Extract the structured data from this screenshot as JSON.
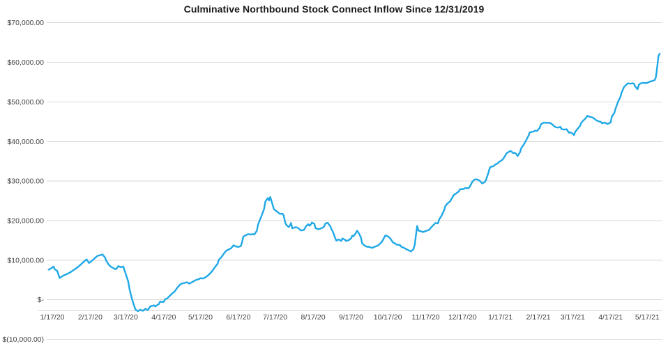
{
  "title": "Culminative Northbound Stock Connect Inflow Since 12/31/2019",
  "colors": {
    "line": "#1fa8e6",
    "gridline": "#dadada",
    "axis_line": "#d4d4d4",
    "axis_text": "#3f3f3f",
    "title_text": "#1a1a1a",
    "background": "#ffffff"
  },
  "y_axis": {
    "ticks": [
      {
        "label": "$70,000.00",
        "value": 70000
      },
      {
        "label": "$60,000.00",
        "value": 60000
      },
      {
        "label": "$50,000.00",
        "value": 50000
      },
      {
        "label": "$40,000.00",
        "value": 40000
      },
      {
        "label": "$30,000.00",
        "value": 30000
      },
      {
        "label": "$20,000.00",
        "value": 20000
      },
      {
        "label": "$10,000.00",
        "value": 10000
      },
      {
        "label": "$-",
        "value": 0
      },
      {
        "label": "$(10,000.00)",
        "value": -10000
      }
    ]
  },
  "x_axis": {
    "tick_labels": [
      "1/17/20",
      "2/17/20",
      "3/17/20",
      "4/17/20",
      "5/17/20",
      "6/17/20",
      "7/17/20",
      "8/17/20",
      "9/17/20",
      "10/17/20",
      "11/17/20",
      "12/17/20",
      "1/17/21",
      "2/17/21",
      "3/17/21",
      "4/17/21",
      "5/17/21"
    ]
  },
  "chart_data": {
    "type": "line",
    "title": "Culminative Northbound Stock Connect Inflow Since 12/31/2019",
    "xlabel": "",
    "ylabel": "",
    "ylim": [
      -10000,
      70000
    ],
    "grid": true,
    "legend": false,
    "series_name": "Cumulative Northbound Stock Connect Inflow",
    "series_color": "#1fa8e6",
    "points": [
      [
        "1/14/20",
        7600
      ],
      [
        "1/16/20",
        7900
      ],
      [
        "1/18/20",
        8400
      ],
      [
        "1/19/20",
        7700
      ],
      [
        "1/21/20",
        7300
      ],
      [
        "1/23/20",
        5500
      ],
      [
        "1/26/20",
        6100
      ],
      [
        "1/29/20",
        6500
      ],
      [
        "2/1/20",
        7000
      ],
      [
        "2/4/20",
        7600
      ],
      [
        "2/7/20",
        8300
      ],
      [
        "2/10/20",
        9100
      ],
      [
        "2/12/20",
        9700
      ],
      [
        "2/14/20",
        10200
      ],
      [
        "2/16/20",
        9300
      ],
      [
        "2/19/20",
        10000
      ],
      [
        "2/21/20",
        10600
      ],
      [
        "2/23/20",
        11100
      ],
      [
        "2/25/20",
        11250
      ],
      [
        "2/27/20",
        11450
      ],
      [
        "2/29/20",
        10700
      ],
      [
        "3/1/20",
        9900
      ],
      [
        "3/3/20",
        8900
      ],
      [
        "3/5/20",
        8300
      ],
      [
        "3/8/20",
        7800
      ],
      [
        "3/9/20",
        7700
      ],
      [
        "3/11/20",
        8500
      ],
      [
        "3/13/20",
        8200
      ],
      [
        "3/15/20",
        8400
      ],
      [
        "3/17/20",
        6500
      ],
      [
        "3/19/20",
        4600
      ],
      [
        "3/20/20",
        2800
      ],
      [
        "3/22/20",
        300
      ],
      [
        "3/24/20",
        -1700
      ],
      [
        "3/25/20",
        -2500
      ],
      [
        "3/27/20",
        -2900
      ],
      [
        "3/29/20",
        -2500
      ],
      [
        "3/31/20",
        -2800
      ],
      [
        "4/2/20",
        -2300
      ],
      [
        "4/4/20",
        -2600
      ],
      [
        "4/6/20",
        -1700
      ],
      [
        "4/9/20",
        -1400
      ],
      [
        "4/10/20",
        -1700
      ],
      [
        "4/13/20",
        -1100
      ],
      [
        "4/14/20",
        -500
      ],
      [
        "4/17/20",
        -550
      ],
      [
        "4/18/20",
        100
      ],
      [
        "4/20/20",
        400
      ],
      [
        "4/22/20",
        1000
      ],
      [
        "4/24/20",
        1600
      ],
      [
        "4/26/20",
        2100
      ],
      [
        "4/28/20",
        3000
      ],
      [
        "4/30/20",
        3700
      ],
      [
        "5/1/20",
        4000
      ],
      [
        "5/4/20",
        4250
      ],
      [
        "5/6/20",
        4400
      ],
      [
        "5/8/20",
        4050
      ],
      [
        "5/9/20",
        4250
      ],
      [
        "5/12/20",
        4750
      ],
      [
        "5/13/20",
        4950
      ],
      [
        "5/16/20",
        5250
      ],
      [
        "5/17/20",
        5450
      ],
      [
        "5/19/20",
        5350
      ],
      [
        "5/21/20",
        5650
      ],
      [
        "5/23/20",
        6100
      ],
      [
        "5/25/20",
        6700
      ],
      [
        "5/27/20",
        7400
      ],
      [
        "5/29/20",
        8300
      ],
      [
        "5/31/20",
        9100
      ],
      [
        "6/1/20",
        10100
      ],
      [
        "6/3/20",
        10700
      ],
      [
        "6/5/20",
        11600
      ],
      [
        "6/7/20",
        12400
      ],
      [
        "6/9/20",
        12700
      ],
      [
        "6/11/20",
        13000
      ],
      [
        "6/13/20",
        13750
      ],
      [
        "6/15/20",
        13450
      ],
      [
        "6/17/20",
        13350
      ],
      [
        "6/19/20",
        13550
      ],
      [
        "6/20/20",
        14550
      ],
      [
        "6/21/20",
        15950
      ],
      [
        "6/23/20",
        16300
      ],
      [
        "6/25/20",
        16600
      ],
      [
        "6/27/20",
        16450
      ],
      [
        "6/29/20",
        16600
      ],
      [
        "6/30/20",
        16450
      ],
      [
        "7/2/20",
        17400
      ],
      [
        "7/3/20",
        18900
      ],
      [
        "7/4/20",
        19800
      ],
      [
        "7/6/20",
        21300
      ],
      [
        "7/8/20",
        23000
      ],
      [
        "7/9/20",
        24800
      ],
      [
        "7/11/20",
        25700
      ],
      [
        "7/12/20",
        25100
      ],
      [
        "7/13/20",
        25950
      ],
      [
        "7/15/20",
        23900
      ],
      [
        "7/16/20",
        22900
      ],
      [
        "7/18/20",
        22400
      ],
      [
        "7/20/20",
        21900
      ],
      [
        "7/21/20",
        21700
      ],
      [
        "7/23/20",
        21750
      ],
      [
        "7/24/20",
        21300
      ],
      [
        "7/25/20",
        19800
      ],
      [
        "7/26/20",
        18950
      ],
      [
        "7/28/20",
        18350
      ],
      [
        "7/29/20",
        18750
      ],
      [
        "7/30/20",
        19400
      ],
      [
        "7/31/20",
        18050
      ],
      [
        "8/2/20",
        18250
      ],
      [
        "8/3/20",
        18350
      ],
      [
        "8/5/20",
        18100
      ],
      [
        "8/7/20",
        17500
      ],
      [
        "8/9/20",
        17600
      ],
      [
        "8/10/20",
        17800
      ],
      [
        "8/11/20",
        18500
      ],
      [
        "8/13/20",
        19100
      ],
      [
        "8/14/20",
        18700
      ],
      [
        "8/15/20",
        18950
      ],
      [
        "8/16/20",
        19500
      ],
      [
        "8/18/20",
        19200
      ],
      [
        "8/19/20",
        18100
      ],
      [
        "8/21/20",
        17850
      ],
      [
        "8/23/20",
        17950
      ],
      [
        "8/25/20",
        18250
      ],
      [
        "8/26/20",
        18500
      ],
      [
        "8/27/20",
        19250
      ],
      [
        "8/29/20",
        19450
      ],
      [
        "8/30/20",
        18950
      ],
      [
        "8/31/20",
        18600
      ],
      [
        "9/1/20",
        17800
      ],
      [
        "9/2/20",
        17300
      ],
      [
        "9/3/20",
        16500
      ],
      [
        "9/4/20",
        15600
      ],
      [
        "9/5/20",
        14950
      ],
      [
        "9/7/20",
        15250
      ],
      [
        "9/9/20",
        14850
      ],
      [
        "9/10/20",
        15500
      ],
      [
        "9/12/20",
        15150
      ],
      [
        "9/13/20",
        14850
      ],
      [
        "9/15/20",
        15050
      ],
      [
        "9/17/20",
        15500
      ],
      [
        "9/18/20",
        16200
      ],
      [
        "9/19/20",
        16050
      ],
      [
        "9/21/20",
        16900
      ],
      [
        "9/22/20",
        17450
      ],
      [
        "9/23/20",
        17000
      ],
      [
        "9/24/20",
        16400
      ],
      [
        "9/25/20",
        15800
      ],
      [
        "9/26/20",
        14250
      ],
      [
        "9/28/20",
        13700
      ],
      [
        "9/30/20",
        13400
      ],
      [
        "10/2/20",
        13350
      ],
      [
        "10/4/20",
        13100
      ],
      [
        "10/6/20",
        13350
      ],
      [
        "10/9/20",
        13700
      ],
      [
        "10/10/20",
        14000
      ],
      [
        "10/12/20",
        14550
      ],
      [
        "10/14/20",
        15700
      ],
      [
        "10/15/20",
        16250
      ],
      [
        "10/17/20",
        16050
      ],
      [
        "10/19/20",
        15500
      ],
      [
        "10/21/20",
        14550
      ],
      [
        "10/23/20",
        14200
      ],
      [
        "10/24/20",
        13950
      ],
      [
        "10/27/20",
        13800
      ],
      [
        "10/28/20",
        13400
      ],
      [
        "10/30/20",
        13150
      ],
      [
        "11/1/20",
        12800
      ],
      [
        "11/3/20",
        12500
      ],
      [
        "11/4/20",
        12350
      ],
      [
        "11/5/20",
        12200
      ],
      [
        "11/7/20",
        12800
      ],
      [
        "11/8/20",
        13900
      ],
      [
        "11/9/20",
        16300
      ],
      [
        "11/10/20",
        18650
      ],
      [
        "11/11/20",
        17500
      ],
      [
        "11/13/20",
        17300
      ],
      [
        "11/15/20",
        17100
      ],
      [
        "11/16/20",
        17250
      ],
      [
        "11/18/20",
        17450
      ],
      [
        "11/20/20",
        17700
      ],
      [
        "11/21/20",
        18150
      ],
      [
        "11/23/20",
        18800
      ],
      [
        "11/25/20",
        19400
      ],
      [
        "11/27/20",
        19300
      ],
      [
        "11/28/20",
        20300
      ],
      [
        "11/30/20",
        21300
      ],
      [
        "12/2/20",
        22600
      ],
      [
        "12/3/20",
        23700
      ],
      [
        "12/5/20",
        24400
      ],
      [
        "12/7/20",
        24900
      ],
      [
        "12/8/20",
        25500
      ],
      [
        "12/10/20",
        26500
      ],
      [
        "12/12/20",
        26900
      ],
      [
        "12/14/20",
        27400
      ],
      [
        "12/15/20",
        27900
      ],
      [
        "12/18/20",
        28000
      ],
      [
        "12/19/20",
        28200
      ],
      [
        "12/22/20",
        28200
      ],
      [
        "12/23/20",
        28600
      ],
      [
        "12/25/20",
        29800
      ],
      [
        "12/27/20",
        30400
      ],
      [
        "12/29/20",
        30400
      ],
      [
        "12/31/20",
        30100
      ],
      [
        "1/2/21",
        29400
      ],
      [
        "1/4/21",
        29700
      ],
      [
        "1/5/21",
        30100
      ],
      [
        "1/7/21",
        31900
      ],
      [
        "1/8/21",
        33000
      ],
      [
        "1/9/21",
        33600
      ],
      [
        "1/11/21",
        33700
      ],
      [
        "1/13/21",
        34200
      ],
      [
        "1/15/21",
        34500
      ],
      [
        "1/16/21",
        34900
      ],
      [
        "1/17/21",
        35000
      ],
      [
        "1/19/21",
        35500
      ],
      [
        "1/20/21",
        36000
      ],
      [
        "1/21/21",
        36450
      ],
      [
        "1/22/21",
        37000
      ],
      [
        "1/24/21",
        37400
      ],
      [
        "1/25/21",
        37600
      ],
      [
        "1/26/21",
        37450
      ],
      [
        "1/27/21",
        37150
      ],
      [
        "1/29/21",
        37050
      ],
      [
        "1/30/21",
        36850
      ],
      [
        "1/31/21",
        36300
      ],
      [
        "2/2/21",
        37300
      ],
      [
        "2/3/21",
        38300
      ],
      [
        "2/5/21",
        39200
      ],
      [
        "2/7/21",
        40300
      ],
      [
        "2/9/21",
        41500
      ],
      [
        "2/10/21",
        42300
      ],
      [
        "2/13/21",
        42500
      ],
      [
        "2/14/21",
        42700
      ],
      [
        "2/16/21",
        42700
      ],
      [
        "2/18/21",
        43400
      ],
      [
        "2/19/21",
        44300
      ],
      [
        "2/21/21",
        44700
      ],
      [
        "2/23/21",
        44750
      ],
      [
        "2/25/21",
        44700
      ],
      [
        "2/26/21",
        44750
      ],
      [
        "2/28/21",
        44400
      ],
      [
        "3/2/21",
        43800
      ],
      [
        "3/3/21",
        43650
      ],
      [
        "3/5/21",
        43500
      ],
      [
        "3/7/21",
        43700
      ],
      [
        "3/8/21",
        43100
      ],
      [
        "3/10/21",
        43000
      ],
      [
        "3/12/21",
        43100
      ],
      [
        "3/14/21",
        42200
      ],
      [
        "3/15/21",
        42300
      ],
      [
        "3/17/21",
        42000
      ],
      [
        "3/18/21",
        41600
      ],
      [
        "3/19/21",
        42400
      ],
      [
        "3/21/21",
        43200
      ],
      [
        "3/23/21",
        43900
      ],
      [
        "3/24/21",
        44700
      ],
      [
        "3/26/21",
        45400
      ],
      [
        "3/28/21",
        46000
      ],
      [
        "3/29/21",
        46500
      ],
      [
        "3/31/21",
        46200
      ],
      [
        "4/2/21",
        46100
      ],
      [
        "4/4/21",
        45700
      ],
      [
        "4/5/21",
        45400
      ],
      [
        "4/7/21",
        45100
      ],
      [
        "4/9/21",
        44950
      ],
      [
        "4/10/21",
        44600
      ],
      [
        "4/12/21",
        44800
      ],
      [
        "4/14/21",
        44450
      ],
      [
        "4/15/21",
        44500
      ],
      [
        "4/17/21",
        44800
      ],
      [
        "4/18/21",
        46300
      ],
      [
        "4/20/21",
        47200
      ],
      [
        "4/21/21",
        48300
      ],
      [
        "4/23/21",
        50000
      ],
      [
        "4/25/21",
        51300
      ],
      [
        "4/26/21",
        52400
      ],
      [
        "4/28/21",
        53800
      ],
      [
        "4/30/21",
        54400
      ],
      [
        "5/1/21",
        54700
      ],
      [
        "5/3/21",
        54600
      ],
      [
        "5/5/21",
        54700
      ],
      [
        "5/6/21",
        54600
      ],
      [
        "5/7/21",
        53900
      ],
      [
        "5/9/21",
        53200
      ],
      [
        "5/10/21",
        54300
      ],
      [
        "5/11/21",
        54600
      ],
      [
        "5/13/21",
        54800
      ],
      [
        "5/15/21",
        54800
      ],
      [
        "5/16/21",
        54700
      ],
      [
        "5/18/21",
        55000
      ],
      [
        "5/20/21",
        55200
      ],
      [
        "5/21/21",
        55300
      ],
      [
        "5/23/21",
        55500
      ],
      [
        "5/24/21",
        56300
      ],
      [
        "5/25/21",
        58800
      ],
      [
        "5/26/21",
        61500
      ],
      [
        "5/27/21",
        62200
      ]
    ]
  }
}
